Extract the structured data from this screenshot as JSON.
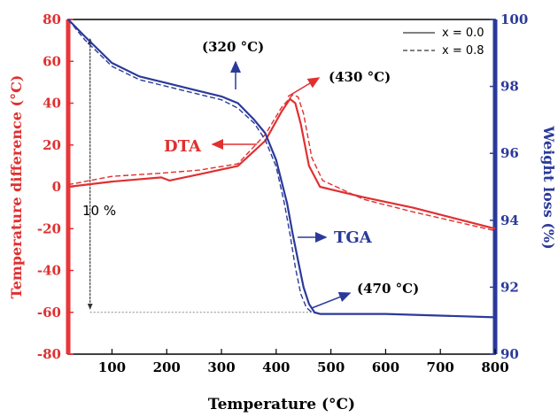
{
  "chart_data": {
    "type": "line",
    "xlabel": "Temperature (°C)",
    "ylabel_left": "Temperature difference (°C)",
    "ylabel_right": "Weight loss (%)",
    "xlim": [
      20,
      800
    ],
    "ylim_left": [
      -80,
      80
    ],
    "ylim_right": [
      90,
      100
    ],
    "x_ticks": [
      100,
      200,
      300,
      400,
      500,
      600,
      700,
      800
    ],
    "y_left_ticks": [
      -80,
      -60,
      -40,
      -20,
      0,
      20,
      40,
      60,
      80
    ],
    "y_right_ticks": [
      90,
      92,
      94,
      96,
      98,
      100
    ],
    "grid": false,
    "legend_position": "top-right",
    "legend": [
      {
        "label": "x = 0.0",
        "style": "solid"
      },
      {
        "label": "x = 0.8",
        "style": "dashed"
      }
    ],
    "colors": {
      "dta": "#e03030",
      "tga": "#2b3a9a",
      "axis_left": "#e8363a",
      "axis_right": "#2b3a9a"
    },
    "annotations": {
      "dta_label": "DTA",
      "tga_label": "TGA",
      "peak_320": "(320 °C)",
      "peak_430": "(430 °C)",
      "peak_470": "(470 °C)",
      "loss_label": "10 %"
    },
    "series": [
      {
        "name": "DTA x = 0.0",
        "axis": "left",
        "style": "solid",
        "x": [
          20,
          100,
          190,
          205,
          260,
          330,
          380,
          410,
          425,
          435,
          445,
          460,
          480,
          560,
          650,
          800
        ],
        "y": [
          0,
          2.5,
          4.5,
          3,
          6,
          10,
          22,
          36,
          42,
          40,
          30,
          10,
          0,
          -5,
          -10,
          -20
        ]
      },
      {
        "name": "DTA x = 0.8",
        "axis": "left",
        "style": "dashed",
        "x": [
          20,
          100,
          190,
          260,
          330,
          380,
          410,
          430,
          440,
          450,
          465,
          485,
          560,
          650,
          800
        ],
        "y": [
          1,
          5,
          6.5,
          8,
          11,
          25,
          38,
          44,
          43,
          35,
          14,
          3,
          -6,
          -12,
          -21
        ]
      },
      {
        "name": "TGA x = 0.0",
        "axis": "right",
        "style": "solid",
        "x": [
          20,
          50,
          100,
          150,
          200,
          250,
          300,
          330,
          360,
          380,
          400,
          420,
          430,
          440,
          450,
          460,
          470,
          480,
          500,
          600,
          700,
          800
        ],
        "y": [
          100,
          99.5,
          98.7,
          98.3,
          98.1,
          97.9,
          97.7,
          97.5,
          97.0,
          96.6,
          95.8,
          94.5,
          93.6,
          92.8,
          92.0,
          91.5,
          91.25,
          91.2,
          91.2,
          91.2,
          91.15,
          91.1
        ]
      },
      {
        "name": "TGA x = 0.8",
        "axis": "right",
        "style": "dashed",
        "x": [
          20,
          50,
          100,
          150,
          200,
          250,
          300,
          330,
          360,
          380,
          400,
          415,
          425,
          435,
          445,
          455,
          465,
          480,
          500
        ],
        "y": [
          100,
          99.4,
          98.6,
          98.2,
          98.0,
          97.8,
          97.6,
          97.35,
          96.9,
          96.4,
          95.6,
          94.5,
          93.6,
          92.6,
          91.8,
          91.4,
          91.25,
          91.2,
          91.2
        ]
      }
    ]
  }
}
